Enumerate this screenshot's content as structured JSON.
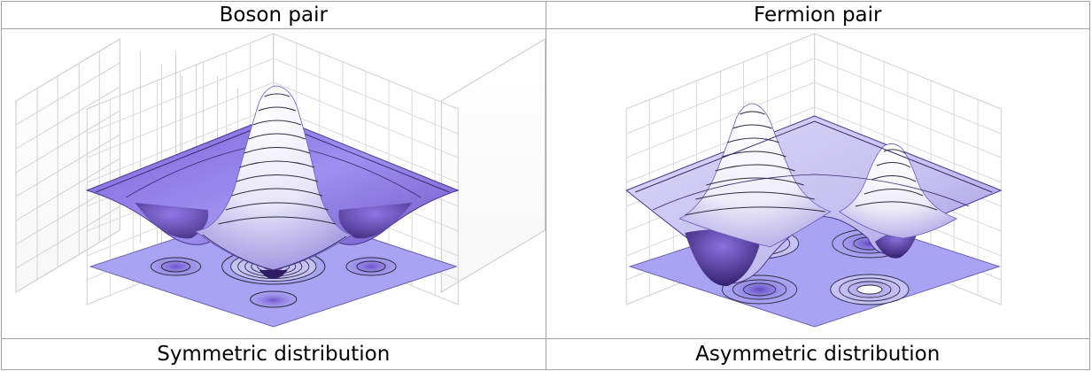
{
  "table": {
    "headers": [
      "Boson pair",
      "Fermion pair"
    ],
    "captions": [
      "Symmetric distribution",
      "Asymmetric distribution"
    ]
  },
  "colors": {
    "border": "#a0a0a0",
    "grid": "#c8c8c8",
    "surface_light": "#f4f4fb",
    "surface_mid": "#b9b2ea",
    "surface_dark": "#5b3f9e",
    "floor": "#a79ef0",
    "contour": "#2c2c40"
  },
  "icons": {
    "boson_plot": "boson-probability-surface-icon",
    "fermion_plot": "fermion-probability-surface-icon"
  }
}
